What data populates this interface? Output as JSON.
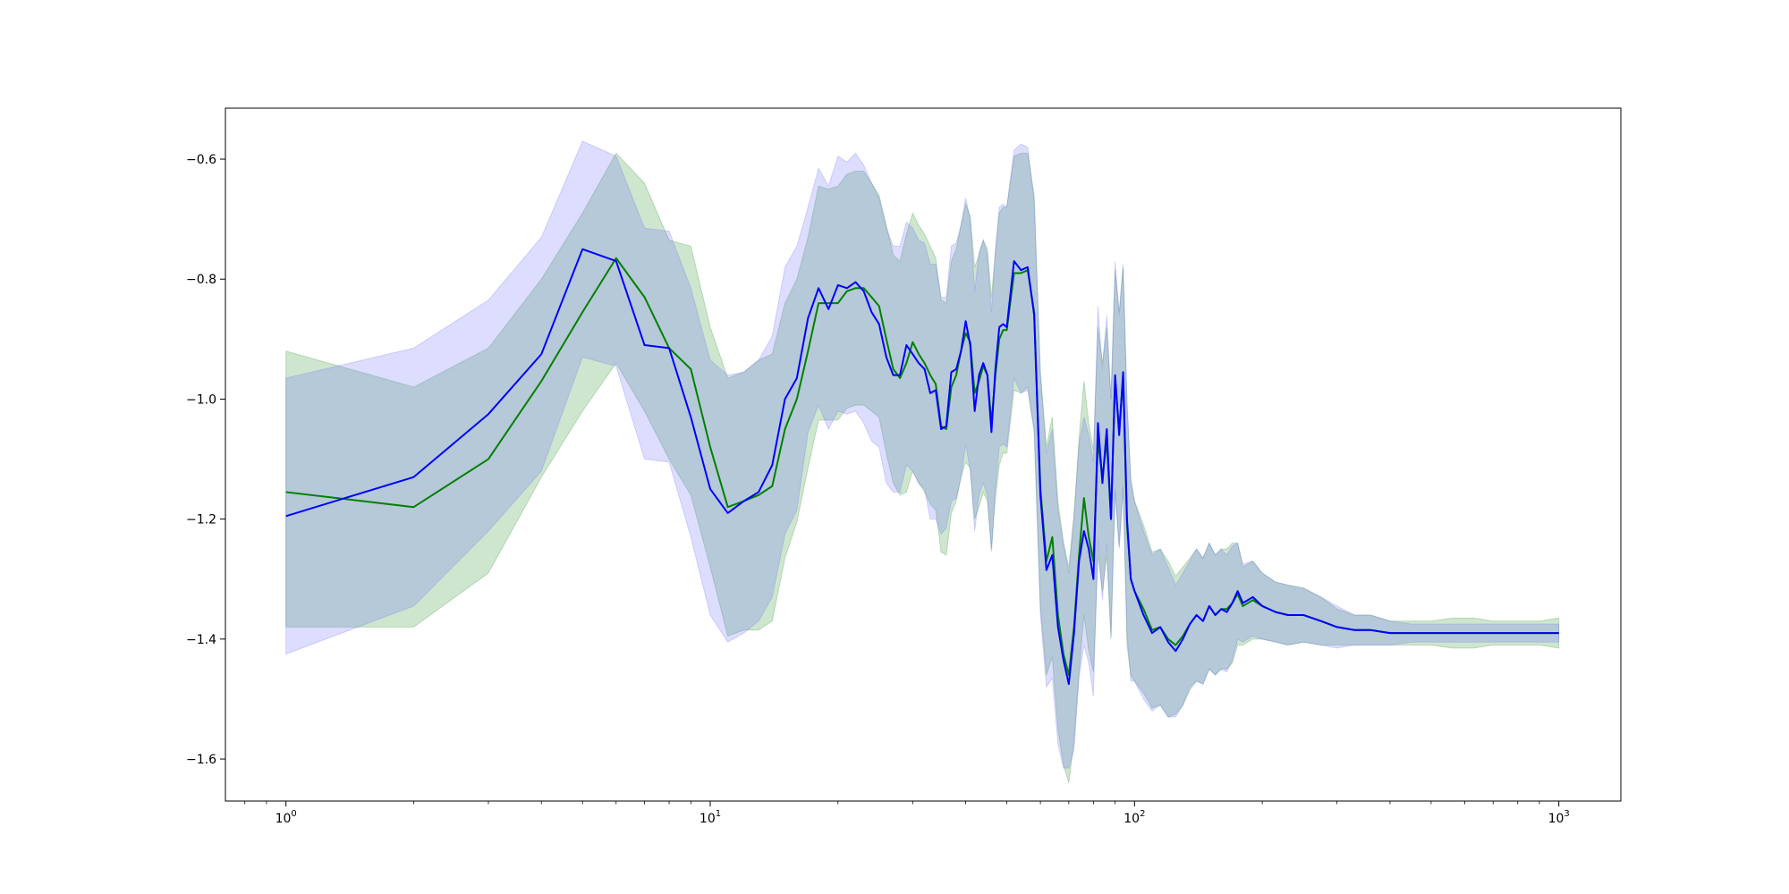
{
  "chart_data": {
    "type": "line",
    "title": "",
    "xlabel": "",
    "ylabel": "",
    "xscale": "log",
    "xlim": [
      0.72,
      1400
    ],
    "ylim": [
      -1.67,
      -0.515
    ],
    "grid": false,
    "legend": "none",
    "x_ticks": [
      {
        "value": 1,
        "base": "10",
        "exp": "0"
      },
      {
        "value": 10,
        "base": "10",
        "exp": "1"
      },
      {
        "value": 100,
        "base": "10",
        "exp": "2"
      },
      {
        "value": 1000,
        "base": "10",
        "exp": "3"
      }
    ],
    "y_ticks": [
      {
        "value": -1.6,
        "label": "−1.6"
      },
      {
        "value": -1.4,
        "label": "−1.4"
      },
      {
        "value": -1.2,
        "label": "−1.2"
      },
      {
        "value": -1.0,
        "label": "−1.0"
      },
      {
        "value": -0.8,
        "label": "−0.8"
      },
      {
        "value": -0.6,
        "label": "−0.6"
      }
    ],
    "series": [
      {
        "color": "#0000ff",
        "band_color": "#6666ff",
        "x": [
          1,
          2,
          3,
          4,
          5,
          6,
          7,
          8,
          9,
          10,
          11,
          12,
          13,
          14,
          15,
          16,
          17,
          18,
          19,
          20,
          21,
          22,
          23,
          24,
          25,
          26,
          27,
          28,
          29,
          30,
          31,
          32,
          33,
          34,
          35,
          36,
          37,
          38,
          39,
          40,
          41,
          42,
          43,
          44,
          45,
          46,
          47,
          48,
          49,
          50,
          52,
          54,
          56,
          58,
          60,
          62,
          64,
          66,
          68,
          70,
          72,
          74,
          76,
          78,
          80,
          82,
          84,
          86,
          88,
          90,
          92,
          94,
          96,
          98,
          100,
          105,
          110,
          115,
          120,
          125,
          130,
          135,
          140,
          145,
          150,
          155,
          160,
          165,
          170,
          175,
          180,
          190,
          200,
          215,
          230,
          250,
          275,
          300,
          330,
          360,
          400,
          450,
          500,
          560,
          630,
          700,
          800,
          900,
          1000
        ],
        "y": [
          -1.195,
          -1.13,
          -1.025,
          -0.925,
          -0.75,
          -0.77,
          -0.91,
          -0.915,
          -1.03,
          -1.15,
          -1.19,
          -1.17,
          -1.155,
          -1.11,
          -1.0,
          -0.965,
          -0.865,
          -0.815,
          -0.85,
          -0.81,
          -0.815,
          -0.805,
          -0.82,
          -0.855,
          -0.875,
          -0.93,
          -0.96,
          -0.96,
          -0.91,
          -0.925,
          -0.94,
          -0.95,
          -0.99,
          -0.985,
          -1.05,
          -1.045,
          -0.955,
          -0.95,
          -0.92,
          -0.87,
          -0.91,
          -1.02,
          -0.96,
          -0.94,
          -0.96,
          -1.055,
          -0.95,
          -0.88,
          -0.875,
          -0.88,
          -0.77,
          -0.785,
          -0.78,
          -0.86,
          -1.16,
          -1.285,
          -1.26,
          -1.38,
          -1.435,
          -1.475,
          -1.39,
          -1.27,
          -1.22,
          -1.25,
          -1.3,
          -1.04,
          -1.14,
          -1.05,
          -1.2,
          -0.96,
          -1.06,
          -0.955,
          -1.2,
          -1.3,
          -1.32,
          -1.36,
          -1.39,
          -1.38,
          -1.405,
          -1.42,
          -1.4,
          -1.375,
          -1.36,
          -1.37,
          -1.345,
          -1.36,
          -1.35,
          -1.355,
          -1.34,
          -1.32,
          -1.34,
          -1.33,
          -1.345,
          -1.355,
          -1.36,
          -1.36,
          -1.37,
          -1.38,
          -1.385,
          -1.385,
          -1.39,
          -1.39,
          -1.39,
          -1.39,
          -1.39,
          -1.39,
          -1.39,
          -1.39,
          -1.39
        ],
        "upper": [
          -0.965,
          -0.915,
          -0.835,
          -0.73,
          -0.57,
          -0.595,
          -0.715,
          -0.72,
          -0.815,
          -0.935,
          -0.96,
          -0.955,
          -0.935,
          -0.895,
          -0.78,
          -0.745,
          -0.68,
          -0.615,
          -0.645,
          -0.595,
          -0.605,
          -0.59,
          -0.61,
          -0.64,
          -0.665,
          -0.715,
          -0.745,
          -0.745,
          -0.705,
          -0.715,
          -0.735,
          -0.74,
          -0.775,
          -0.775,
          -0.83,
          -0.83,
          -0.745,
          -0.74,
          -0.71,
          -0.665,
          -0.7,
          -0.82,
          -0.755,
          -0.735,
          -0.76,
          -0.855,
          -0.75,
          -0.68,
          -0.675,
          -0.68,
          -0.585,
          -0.575,
          -0.58,
          -0.67,
          -0.96,
          -1.09,
          -1.05,
          -1.185,
          -1.24,
          -1.29,
          -1.2,
          -1.075,
          -1.03,
          -1.06,
          -1.105,
          -0.845,
          -0.95,
          -0.86,
          -1.0,
          -0.77,
          -0.86,
          -0.775,
          -1.0,
          -1.13,
          -1.17,
          -1.22,
          -1.26,
          -1.25,
          -1.28,
          -1.31,
          -1.29,
          -1.27,
          -1.25,
          -1.265,
          -1.24,
          -1.26,
          -1.25,
          -1.26,
          -1.245,
          -1.24,
          -1.275,
          -1.27,
          -1.29,
          -1.305,
          -1.31,
          -1.315,
          -1.33,
          -1.345,
          -1.36,
          -1.36,
          -1.37,
          -1.375,
          -1.375,
          -1.375,
          -1.375,
          -1.375,
          -1.375,
          -1.375,
          -1.375
        ],
        "lower": [
          -1.425,
          -1.345,
          -1.22,
          -1.12,
          -0.93,
          -0.945,
          -1.1,
          -1.105,
          -1.23,
          -1.36,
          -1.405,
          -1.39,
          -1.37,
          -1.33,
          -1.225,
          -1.185,
          -1.055,
          -1.01,
          -1.05,
          -1.02,
          -1.025,
          -1.02,
          -1.04,
          -1.07,
          -1.08,
          -1.14,
          -1.155,
          -1.155,
          -1.11,
          -1.12,
          -1.14,
          -1.15,
          -1.2,
          -1.2,
          -1.225,
          -1.215,
          -1.17,
          -1.165,
          -1.13,
          -1.075,
          -1.12,
          -1.22,
          -1.16,
          -1.14,
          -1.16,
          -1.255,
          -1.15,
          -1.08,
          -1.075,
          -1.08,
          -0.965,
          -0.99,
          -0.985,
          -1.055,
          -1.36,
          -1.48,
          -1.465,
          -1.575,
          -1.615,
          -1.615,
          -1.585,
          -1.465,
          -1.41,
          -1.44,
          -1.495,
          -1.235,
          -1.335,
          -1.24,
          -1.395,
          -1.15,
          -1.25,
          -1.145,
          -1.39,
          -1.47,
          -1.47,
          -1.5,
          -1.52,
          -1.51,
          -1.53,
          -1.53,
          -1.51,
          -1.48,
          -1.47,
          -1.475,
          -1.45,
          -1.46,
          -1.45,
          -1.455,
          -1.435,
          -1.4,
          -1.405,
          -1.395,
          -1.4,
          -1.405,
          -1.41,
          -1.405,
          -1.41,
          -1.415,
          -1.41,
          -1.41,
          -1.41,
          -1.405,
          -1.405,
          -1.405,
          -1.405,
          -1.405,
          -1.405,
          -1.405,
          -1.405
        ]
      },
      {
        "color": "#008000",
        "band_color": "#228b22",
        "x": [
          1,
          2,
          3,
          4,
          5,
          6,
          7,
          8,
          9,
          10,
          11,
          12,
          13,
          14,
          15,
          16,
          17,
          18,
          19,
          20,
          21,
          22,
          23,
          24,
          25,
          26,
          27,
          28,
          29,
          30,
          31,
          32,
          33,
          34,
          35,
          36,
          37,
          38,
          39,
          40,
          41,
          42,
          43,
          44,
          45,
          46,
          47,
          48,
          49,
          50,
          52,
          54,
          56,
          58,
          60,
          62,
          64,
          66,
          68,
          70,
          72,
          74,
          76,
          78,
          80,
          82,
          84,
          86,
          88,
          90,
          92,
          94,
          96,
          98,
          100,
          105,
          110,
          115,
          120,
          125,
          130,
          135,
          140,
          145,
          150,
          155,
          160,
          165,
          170,
          175,
          180,
          190,
          200,
          215,
          230,
          250,
          275,
          300,
          330,
          360,
          400,
          450,
          500,
          560,
          630,
          700,
          800,
          900,
          1000
        ],
        "y": [
          -1.155,
          -1.18,
          -1.1,
          -0.97,
          -0.855,
          -0.765,
          -0.83,
          -0.915,
          -0.95,
          -1.08,
          -1.18,
          -1.17,
          -1.16,
          -1.145,
          -1.05,
          -1.0,
          -0.92,
          -0.84,
          -0.84,
          -0.84,
          -0.82,
          -0.815,
          -0.815,
          -0.83,
          -0.845,
          -0.9,
          -0.95,
          -0.965,
          -0.94,
          -0.905,
          -0.925,
          -0.94,
          -0.96,
          -0.975,
          -1.045,
          -1.05,
          -0.98,
          -0.96,
          -0.92,
          -0.89,
          -0.905,
          -0.99,
          -0.97,
          -0.945,
          -0.96,
          -1.04,
          -0.96,
          -0.9,
          -0.885,
          -0.885,
          -0.79,
          -0.79,
          -0.785,
          -0.855,
          -1.15,
          -1.27,
          -1.23,
          -1.36,
          -1.425,
          -1.46,
          -1.38,
          -1.26,
          -1.165,
          -1.23,
          -1.27,
          -1.07,
          -1.13,
          -1.07,
          -1.2,
          -0.97,
          -1.05,
          -0.965,
          -1.21,
          -1.3,
          -1.32,
          -1.35,
          -1.385,
          -1.38,
          -1.4,
          -1.41,
          -1.395,
          -1.375,
          -1.36,
          -1.37,
          -1.345,
          -1.36,
          -1.35,
          -1.35,
          -1.34,
          -1.325,
          -1.345,
          -1.335,
          -1.345,
          -1.355,
          -1.36,
          -1.36,
          -1.37,
          -1.38,
          -1.385,
          -1.385,
          -1.39,
          -1.39,
          -1.39,
          -1.39,
          -1.39,
          -1.39,
          -1.39,
          -1.39,
          -1.39
        ],
        "upper": [
          -0.92,
          -0.98,
          -0.915,
          -0.8,
          -0.69,
          -0.59,
          -0.64,
          -0.735,
          -0.745,
          -0.88,
          -0.965,
          -0.955,
          -0.935,
          -0.925,
          -0.84,
          -0.8,
          -0.73,
          -0.645,
          -0.65,
          -0.645,
          -0.625,
          -0.62,
          -0.62,
          -0.64,
          -0.66,
          -0.71,
          -0.76,
          -0.77,
          -0.725,
          -0.69,
          -0.71,
          -0.725,
          -0.745,
          -0.765,
          -0.835,
          -0.84,
          -0.77,
          -0.75,
          -0.71,
          -0.675,
          -0.695,
          -0.78,
          -0.76,
          -0.735,
          -0.75,
          -0.83,
          -0.755,
          -0.69,
          -0.68,
          -0.68,
          -0.595,
          -0.59,
          -0.59,
          -0.66,
          -0.955,
          -1.08,
          -1.03,
          -1.17,
          -1.24,
          -1.28,
          -1.19,
          -1.065,
          -0.97,
          -1.04,
          -1.085,
          -0.88,
          -0.94,
          -0.88,
          -1.0,
          -0.785,
          -0.855,
          -0.78,
          -1.01,
          -1.14,
          -1.17,
          -1.21,
          -1.255,
          -1.25,
          -1.27,
          -1.295,
          -1.28,
          -1.265,
          -1.25,
          -1.265,
          -1.24,
          -1.26,
          -1.25,
          -1.25,
          -1.24,
          -1.24,
          -1.28,
          -1.27,
          -1.29,
          -1.305,
          -1.31,
          -1.315,
          -1.33,
          -1.35,
          -1.36,
          -1.36,
          -1.37,
          -1.37,
          -1.37,
          -1.365,
          -1.365,
          -1.37,
          -1.37,
          -1.37,
          -1.365
        ],
        "upper_note": "",
        "lower": [
          -1.38,
          -1.38,
          -1.29,
          -1.13,
          -1.02,
          -0.94,
          -1.02,
          -1.1,
          -1.16,
          -1.28,
          -1.395,
          -1.385,
          -1.385,
          -1.37,
          -1.265,
          -1.205,
          -1.115,
          -1.035,
          -1.035,
          -1.035,
          -1.015,
          -1.01,
          -1.01,
          -1.02,
          -1.03,
          -1.09,
          -1.14,
          -1.16,
          -1.155,
          -1.12,
          -1.14,
          -1.155,
          -1.175,
          -1.185,
          -1.255,
          -1.26,
          -1.19,
          -1.17,
          -1.13,
          -1.105,
          -1.115,
          -1.2,
          -1.18,
          -1.155,
          -1.17,
          -1.25,
          -1.165,
          -1.11,
          -1.09,
          -1.09,
          -0.985,
          -0.99,
          -0.98,
          -1.05,
          -1.345,
          -1.46,
          -1.43,
          -1.55,
          -1.61,
          -1.64,
          -1.57,
          -1.455,
          -1.36,
          -1.42,
          -1.455,
          -1.26,
          -1.32,
          -1.26,
          -1.4,
          -1.155,
          -1.245,
          -1.15,
          -1.41,
          -1.46,
          -1.47,
          -1.49,
          -1.515,
          -1.51,
          -1.53,
          -1.525,
          -1.51,
          -1.485,
          -1.47,
          -1.475,
          -1.45,
          -1.46,
          -1.45,
          -1.45,
          -1.44,
          -1.41,
          -1.41,
          -1.4,
          -1.4,
          -1.405,
          -1.41,
          -1.405,
          -1.41,
          -1.41,
          -1.41,
          -1.41,
          -1.41,
          -1.41,
          -1.41,
          -1.415,
          -1.415,
          -1.41,
          -1.41,
          -1.41,
          -1.415
        ]
      }
    ]
  }
}
